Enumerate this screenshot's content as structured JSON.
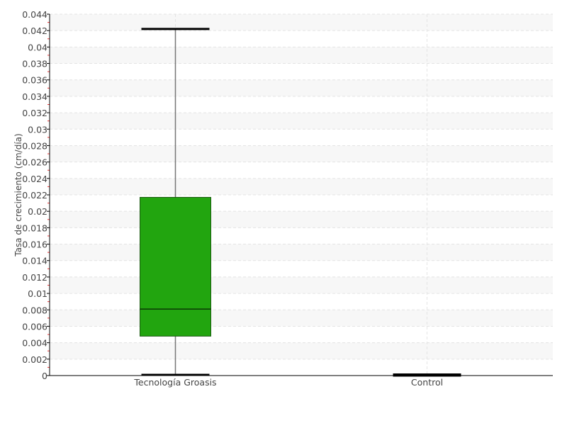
{
  "chart_data": {
    "type": "boxplot",
    "title": "",
    "xlabel": "",
    "ylabel": "Tasa de crecimiento (cm/día)",
    "ylim": [
      0,
      0.044
    ],
    "yticks": [
      "0",
      "0.002",
      "0.004",
      "0.006",
      "0.008",
      "0.01",
      "0.012",
      "0.014",
      "0.016",
      "0.018",
      "0.02",
      "0.022",
      "0.024",
      "0.026",
      "0.028",
      "0.03",
      "0.032",
      "0.034",
      "0.036",
      "0.038",
      "0.04",
      "0.042",
      "0.044"
    ],
    "categories": [
      "Tecnología Groasis",
      "Control"
    ],
    "boxes": [
      {
        "category": "Tecnología Groasis",
        "min": 0,
        "q1": 0.0048,
        "median": 0.0081,
        "q3": 0.0217,
        "max": 0.0422,
        "color": "#22a50f"
      },
      {
        "category": "Control",
        "min": 0,
        "q1": 0,
        "median": 0,
        "q3": 0,
        "max": 0,
        "color": "#22a50f"
      }
    ],
    "grid": true,
    "legend": "none"
  }
}
